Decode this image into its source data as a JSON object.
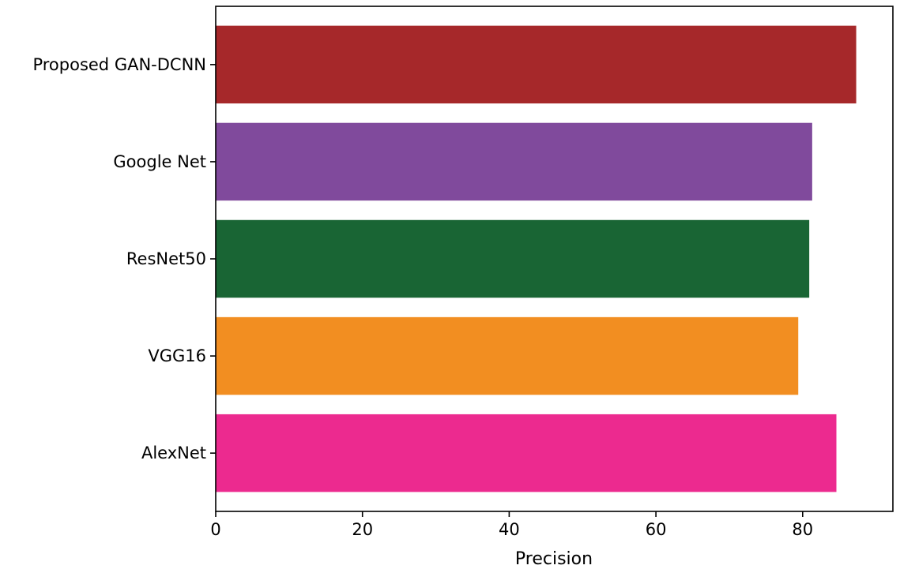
{
  "chart_data": {
    "type": "bar",
    "orientation": "horizontal",
    "categories": [
      "AlexNet",
      "VGG16",
      "ResNet50",
      "Google Net",
      "Proposed GAN-DCNN"
    ],
    "values": [
      84.6,
      79.4,
      80.9,
      81.3,
      87.3
    ],
    "colors": [
      "#ec2a8f",
      "#f28e21",
      "#196534",
      "#804a9c",
      "#a6282a"
    ],
    "title": "",
    "xlabel": "Precision",
    "ylabel": "",
    "xlim": [
      0,
      92.3
    ],
    "xticks": [
      0,
      20,
      40,
      60,
      80
    ],
    "xtick_labels": [
      "0",
      "20",
      "40",
      "60",
      "80"
    ],
    "grid": false,
    "legend": "none"
  }
}
